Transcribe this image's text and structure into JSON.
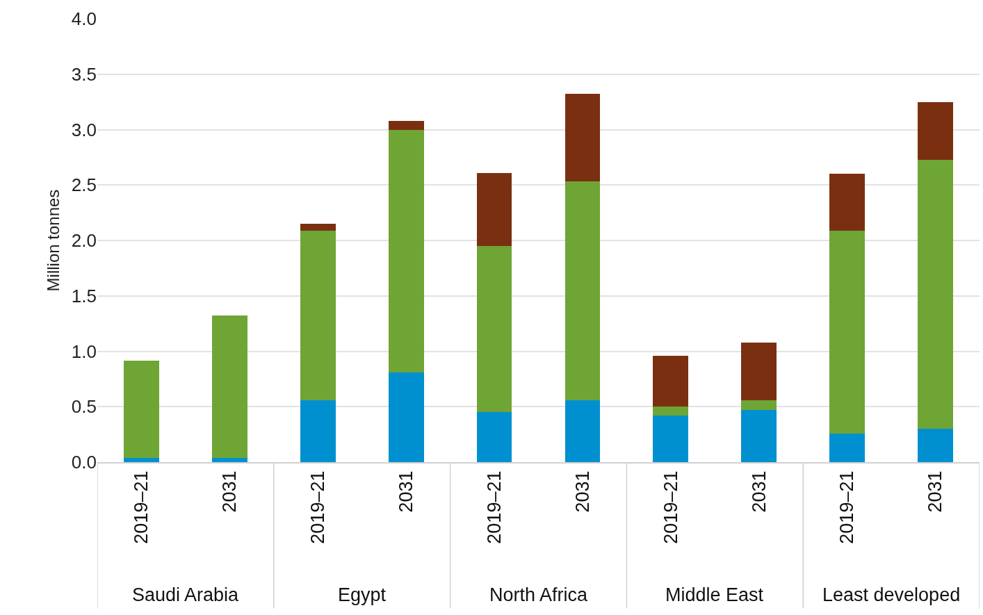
{
  "chart_data": {
    "type": "bar",
    "stacked": true,
    "ylabel": "Million tonnes",
    "categories": [
      "2019–21",
      "2031",
      "2019–21",
      "2031",
      "2019–21",
      "2031",
      "2019–21",
      "2031",
      "2019–21",
      "2031"
    ],
    "annotations": [
      "Saudi Arabia",
      "Egypt",
      "North Africa",
      "Middle East",
      "Least developed"
    ],
    "series": [
      {
        "color": "#0090d0",
        "values": [
          0.04,
          0.04,
          0.56,
          0.81,
          0.45,
          0.56,
          0.42,
          0.47,
          0.26,
          0.3
        ]
      },
      {
        "color": "#6ea535",
        "values": [
          0.875,
          1.28,
          1.53,
          2.19,
          1.5,
          1.97,
          0.08,
          0.09,
          1.83,
          2.43
        ]
      },
      {
        "color": "#7a3010",
        "values": [
          0,
          0,
          0.06,
          0.08,
          0.66,
          0.79,
          0.46,
          0.52,
          0.51,
          0.52
        ]
      }
    ],
    "ylim": [
      0,
      4.0
    ],
    "yticks": [
      {
        "value": 0,
        "label": "0.0"
      },
      {
        "value": 0.5,
        "label": "0.5"
      },
      {
        "value": 1,
        "label": "1.0"
      },
      {
        "value": 1.5,
        "label": "1.5"
      },
      {
        "value": 2,
        "label": "2.0"
      },
      {
        "value": 2.5,
        "label": "2.5"
      },
      {
        "value": 3,
        "label": "3.0"
      },
      {
        "value": 3.5,
        "label": "3.5"
      },
      {
        "value": 4,
        "label": "4.0"
      }
    ],
    "grid": "y"
  }
}
